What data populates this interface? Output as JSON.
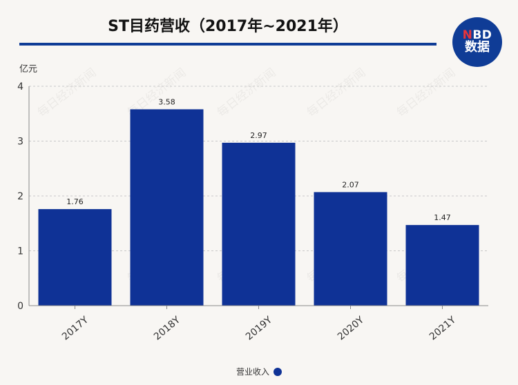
{
  "header": {
    "title": "ST目药营收（2017年~2021年）",
    "logo_top": "NBD",
    "logo_bottom": "数据"
  },
  "watermark": "每日经济新闻",
  "chart_data": {
    "type": "bar",
    "title": "ST目药营收（2017年~2021年）",
    "ylabel": "亿元",
    "xlabel": "",
    "categories": [
      "2017Y",
      "2018Y",
      "2019Y",
      "2020Y",
      "2021Y"
    ],
    "series": [
      {
        "name": "营业收入",
        "values": [
          1.76,
          3.58,
          2.97,
          2.07,
          1.47
        ]
      }
    ],
    "ylim": [
      0,
      4
    ],
    "yticks": [
      0,
      1,
      2,
      3,
      4
    ],
    "grid": true,
    "legend": "bottom-center",
    "colors": {
      "bar": "#0f3296",
      "title_rule": "#0f3c96"
    }
  }
}
